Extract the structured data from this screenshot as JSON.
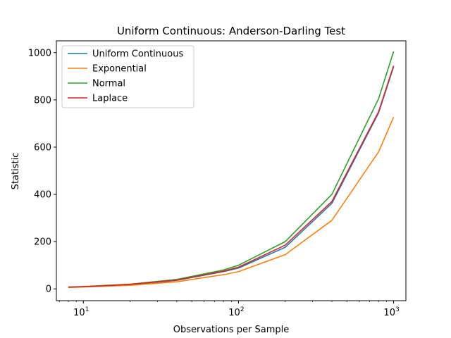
{
  "chart_data": {
    "type": "line",
    "title": "Uniform Continuous: Anderson-Darling Test",
    "xlabel": "Observations per Sample",
    "ylabel": "Statistic",
    "xscale": "log",
    "xlim": [
      6.7,
      1200
    ],
    "ylim": [
      -50,
      1050
    ],
    "yticks": [
      0,
      200,
      400,
      600,
      800,
      1000
    ],
    "xticks": [
      {
        "value": 10,
        "base": "10",
        "exp": "1"
      },
      {
        "value": 100,
        "base": "10",
        "exp": "2"
      },
      {
        "value": 1000,
        "base": "10",
        "exp": "3"
      }
    ],
    "legend_position": "upper-left",
    "grid": false,
    "x": [
      8,
      10,
      20,
      40,
      80,
      100,
      200,
      400,
      800,
      1000
    ],
    "series": [
      {
        "name": "Uniform Continuous",
        "color": "#1f77b4",
        "values": [
          7,
          9,
          18,
          36,
          73,
          88,
          176,
          362,
          745,
          940
        ]
      },
      {
        "name": "Exponential",
        "color": "#ff7f0e",
        "values": [
          6,
          8,
          15,
          30,
          60,
          73,
          145,
          290,
          580,
          727
        ]
      },
      {
        "name": "Normal",
        "color": "#2ca02c",
        "values": [
          8,
          10,
          20,
          40,
          80,
          100,
          200,
          400,
          805,
          1005
        ]
      },
      {
        "name": "Laplace",
        "color": "#d62728",
        "values": [
          7,
          9,
          19,
          37,
          75,
          92,
          185,
          370,
          750,
          945
        ]
      }
    ]
  }
}
